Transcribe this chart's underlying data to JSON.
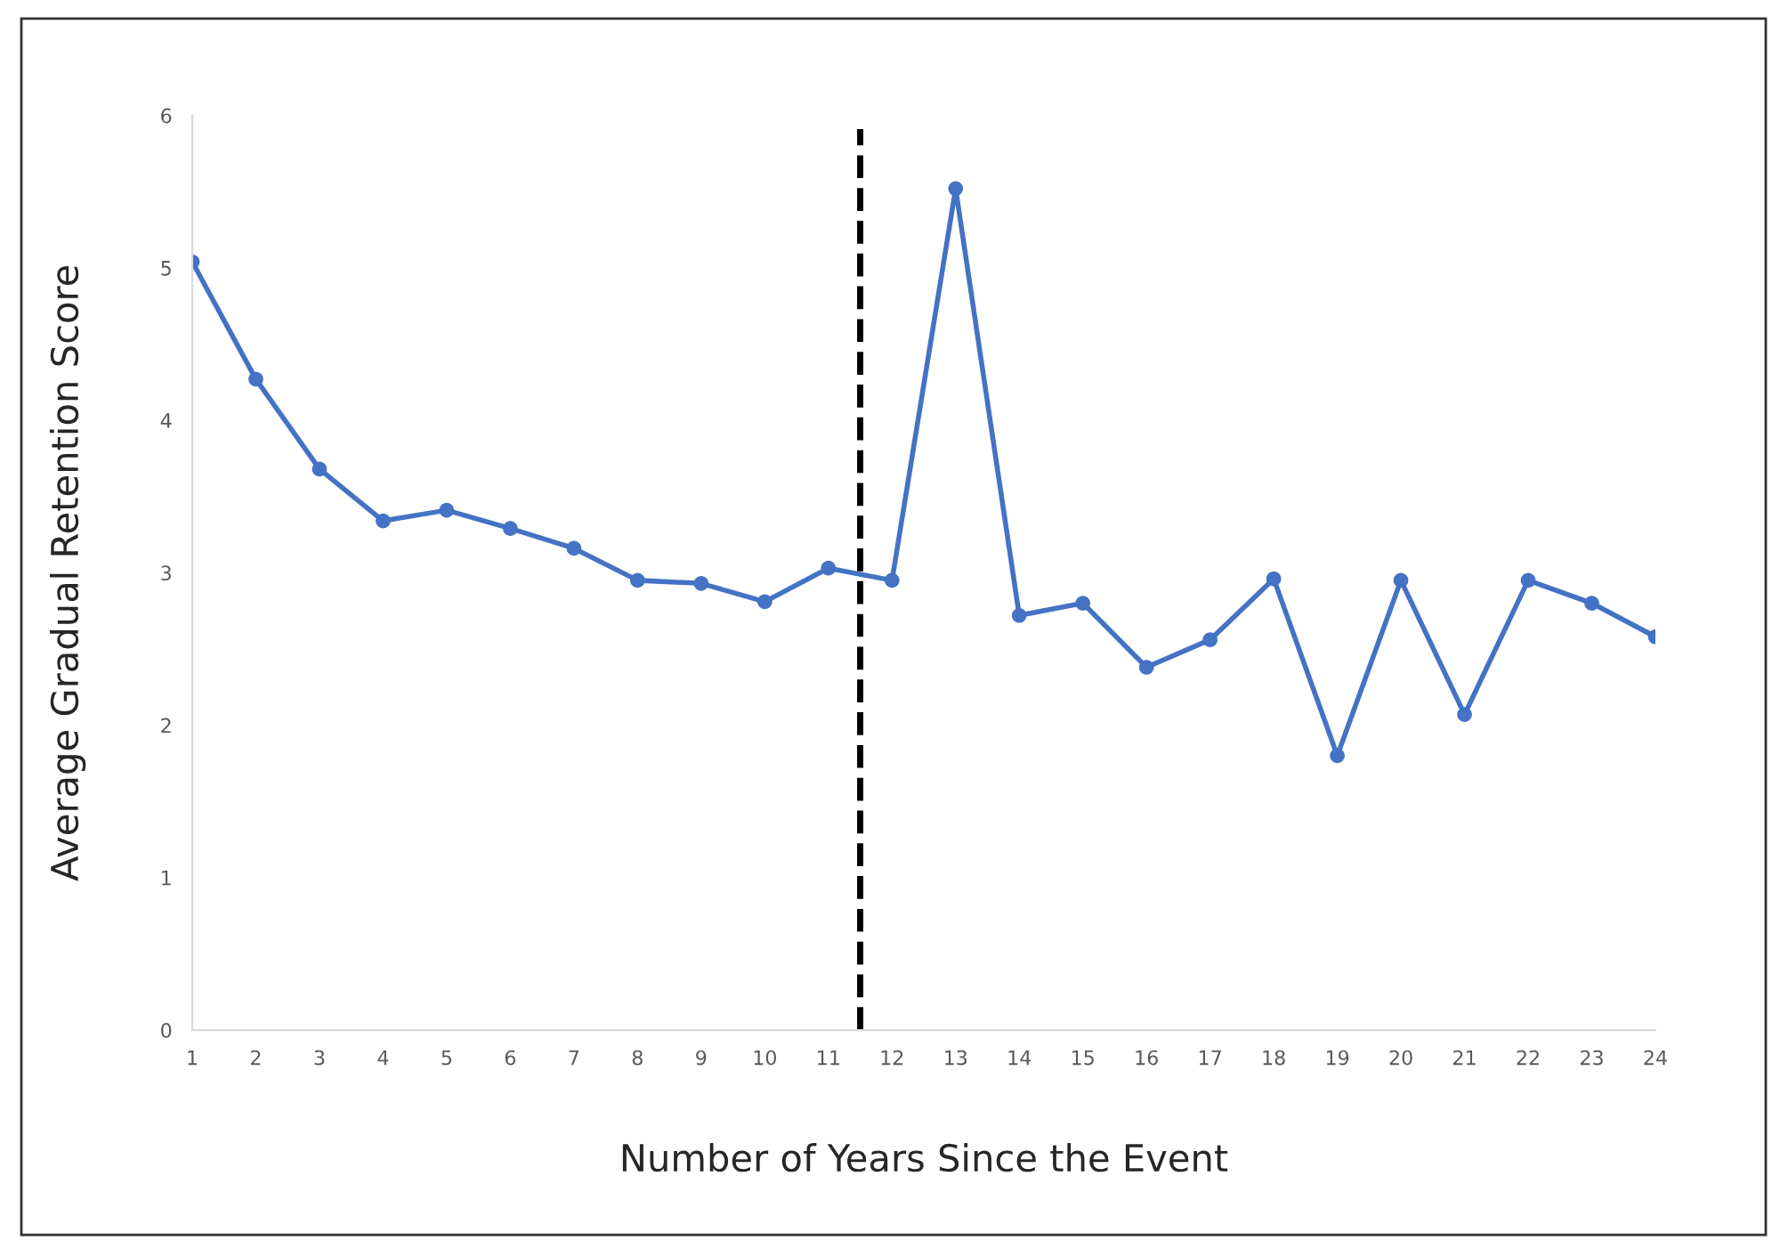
{
  "chart_data": {
    "type": "line",
    "xlabel": "Number of Years Since the Event",
    "ylabel": "Average Gradual Retention Score",
    "x": [
      1,
      2,
      3,
      4,
      5,
      6,
      7,
      8,
      9,
      10,
      11,
      12,
      13,
      14,
      15,
      16,
      17,
      18,
      19,
      20,
      21,
      22,
      23,
      24
    ],
    "series": [
      {
        "color": "#4472c4",
        "values": [
          5.04,
          4.27,
          3.68,
          3.34,
          3.41,
          3.29,
          3.16,
          2.95,
          2.93,
          2.81,
          3.03,
          2.95,
          5.52,
          2.72,
          2.8,
          2.38,
          2.56,
          2.96,
          1.8,
          2.95,
          2.07,
          2.95,
          2.8,
          2.58
        ]
      }
    ],
    "xlim": [
      1,
      24
    ],
    "xticks": [
      1,
      2,
      3,
      4,
      5,
      6,
      7,
      8,
      9,
      10,
      11,
      12,
      13,
      14,
      15,
      16,
      17,
      18,
      19,
      20,
      21,
      22,
      23,
      24
    ],
    "ylim": [
      0,
      6
    ],
    "yticks": [
      0,
      1,
      2,
      3,
      4,
      5,
      6
    ],
    "ref_lines": [
      {
        "axis": "x",
        "value": 11.5,
        "color": "#000000",
        "line_style": "dashed"
      }
    ],
    "marker": "circle",
    "line_style": "solid",
    "grid": false,
    "legend": false
  }
}
